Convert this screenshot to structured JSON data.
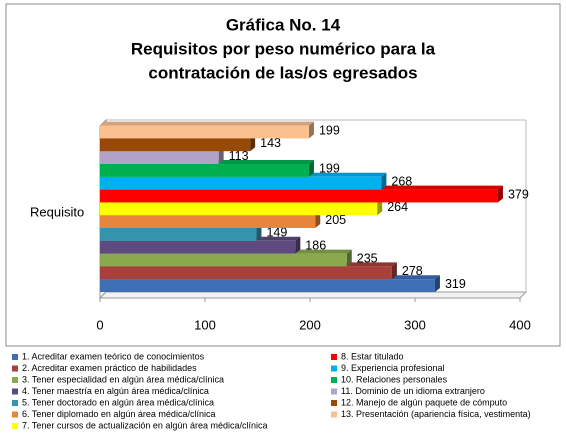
{
  "chart_data": {
    "type": "bar",
    "orientation": "horizontal",
    "title": [
      "Gráfica No. 14",
      "Requisitos por peso numérico para la",
      "contratación de las/os egresados"
    ],
    "categories": [
      "Requisito"
    ],
    "xlim": [
      0,
      400
    ],
    "xticks": [
      0,
      100,
      200,
      300,
      400
    ],
    "series": [
      {
        "name": "1. Acreditar examen teórico de conocimientos",
        "color": "#3e6fb5",
        "values": [
          319
        ]
      },
      {
        "name": "2. Acreditar examen práctico de habilidades",
        "color": "#a8403d",
        "values": [
          278
        ]
      },
      {
        "name": "3. Tener especialidad en algún área médica/clínica",
        "color": "#8aa84e",
        "values": [
          235
        ]
      },
      {
        "name": "4. Tener maestría en algún área médica/clínica",
        "color": "#5e4a7e",
        "values": [
          186
        ]
      },
      {
        "name": "5. Tener doctorado en algún área médica/clínica",
        "color": "#3594ad",
        "values": [
          149
        ]
      },
      {
        "name": "6. Tener diplomado en algún área médica/clínica",
        "color": "#e7853d",
        "values": [
          205
        ]
      },
      {
        "name": "7. Tener cursos de actualización en algún área médica/clínica",
        "color": "#ffff00",
        "values": [
          264
        ]
      },
      {
        "name": "8. Estar titulado",
        "color": "#ff0000",
        "values": [
          379
        ]
      },
      {
        "name": "9. Experiencia profesional",
        "color": "#00b0f0",
        "values": [
          268
        ]
      },
      {
        "name": "10. Relaciones personales",
        "color": "#00b050",
        "values": [
          199
        ]
      },
      {
        "name": "11. Dominio de un idioma extranjero",
        "color": "#b3a2c7",
        "values": [
          113
        ]
      },
      {
        "name": "12. Manejo de algún paquete de cómputo",
        "color": "#984807",
        "values": [
          143
        ]
      },
      {
        "name": "13. Presentación (apariencia física, vestimenta)",
        "color": "#fac090",
        "values": [
          199
        ]
      }
    ]
  }
}
